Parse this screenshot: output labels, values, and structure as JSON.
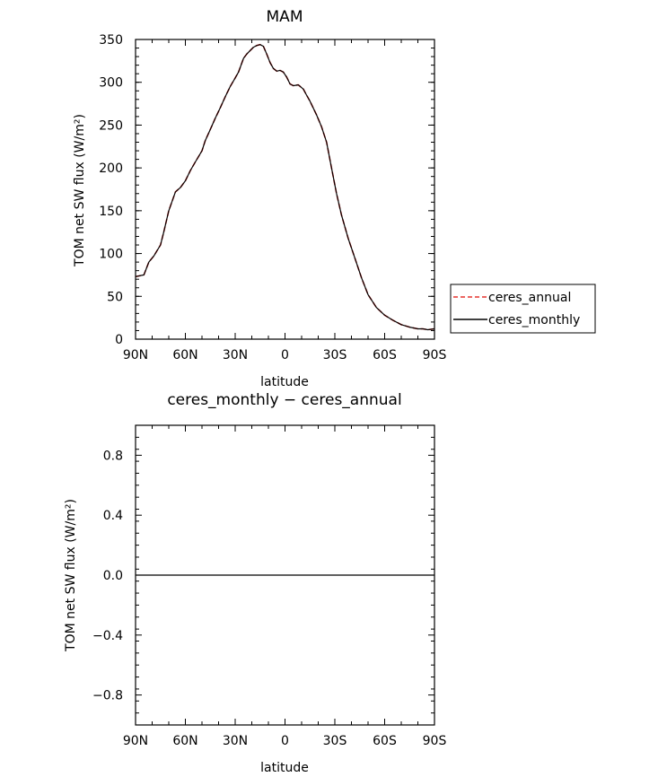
{
  "chart_data": [
    {
      "type": "line",
      "title": "MAM",
      "xlabel": "latitude",
      "ylabel": "TOM net SW flux (W/m²)",
      "xlim": [
        90,
        -90
      ],
      "ylim": [
        0,
        350
      ],
      "x_ticks": [
        90,
        60,
        30,
        0,
        -30,
        -60,
        -90
      ],
      "x_tick_labels": [
        "90N",
        "60N",
        "30N",
        "0",
        "30S",
        "60S",
        "90S"
      ],
      "y_ticks": [
        0,
        50,
        100,
        150,
        200,
        250,
        300,
        350
      ],
      "y_tick_labels": [
        "0",
        "50",
        "100",
        "150",
        "200",
        "250",
        "300",
        "350"
      ],
      "grid": false,
      "legend_position": "right",
      "x": [
        90,
        85,
        82,
        79,
        75,
        73,
        70,
        66,
        63,
        60,
        57,
        54,
        50,
        48,
        45,
        42,
        39,
        36,
        33,
        30,
        28,
        25,
        23,
        21,
        19,
        17,
        15,
        13,
        11,
        9,
        7,
        5,
        3,
        1,
        -1,
        -3,
        -5,
        -8,
        -11,
        -13,
        -15,
        -17,
        -19,
        -22,
        -25,
        -28,
        -31,
        -34,
        -38,
        -42,
        -46,
        -50,
        -55,
        -60,
        -65,
        -70,
        -75,
        -80,
        -83,
        -86,
        -90
      ],
      "series": [
        {
          "name": "ceres_annual",
          "color": "#e5332f",
          "dash": true,
          "values": [
            73,
            75,
            90,
            97,
            110,
            125,
            150,
            172,
            177,
            185,
            197,
            207,
            220,
            232,
            245,
            258,
            270,
            283,
            295,
            305,
            312,
            328,
            333,
            337,
            341,
            343,
            344,
            342,
            333,
            323,
            316,
            313,
            314,
            312,
            306,
            298,
            296,
            297,
            292,
            285,
            278,
            270,
            262,
            248,
            230,
            200,
            170,
            145,
            118,
            95,
            72,
            52,
            37,
            28,
            22,
            17,
            14,
            12,
            12,
            11,
            12
          ]
        },
        {
          "name": "ceres_monthly",
          "color": "#000000",
          "dash": false,
          "values": [
            73,
            75,
            90,
            97,
            110,
            125,
            150,
            172,
            177,
            185,
            197,
            207,
            220,
            232,
            245,
            258,
            270,
            283,
            295,
            305,
            312,
            328,
            333,
            337,
            341,
            343,
            344,
            342,
            333,
            323,
            316,
            313,
            314,
            312,
            306,
            298,
            296,
            297,
            292,
            285,
            278,
            270,
            262,
            248,
            230,
            200,
            170,
            145,
            118,
            95,
            72,
            52,
            37,
            28,
            22,
            17,
            14,
            12,
            12,
            11,
            12
          ]
        }
      ]
    },
    {
      "type": "line",
      "title": "ceres_monthly − ceres_annual",
      "xlabel": "latitude",
      "ylabel": "TOM net SW flux (W/m²)",
      "xlim": [
        90,
        -90
      ],
      "ylim": [
        -1,
        1
      ],
      "x_ticks": [
        90,
        60,
        30,
        0,
        -30,
        -60,
        -90
      ],
      "x_tick_labels": [
        "90N",
        "60N",
        "30N",
        "0",
        "30S",
        "60S",
        "90S"
      ],
      "y_ticks": [
        -0.8,
        -0.4,
        0.0,
        0.4,
        0.8
      ],
      "y_tick_labels": [
        "−0.8",
        "−0.4",
        "0.0",
        "0.4",
        "0.8"
      ],
      "grid": false,
      "x": [
        90,
        -90
      ],
      "series": [
        {
          "color": "#000000",
          "values": [
            0,
            0
          ]
        }
      ]
    }
  ]
}
